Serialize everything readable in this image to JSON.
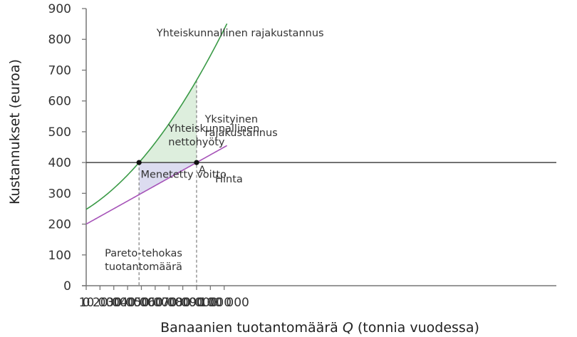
{
  "chart_data": {
    "type": "line",
    "title": "",
    "xlabel": "Banaanien tuotantomäärä Q (tonnia vuodessa)",
    "xlabel_parts": {
      "before": "Banaanien tuotantomäärä ",
      "italic": "Q",
      "after": " (tonnia vuodessa)"
    },
    "ylabel": "Kustannukset (euroa)",
    "xlim": [
      0,
      102000
    ],
    "ylim": [
      0,
      900
    ],
    "x_ticks": [
      0,
      10000,
      20000,
      30000,
      40000,
      50000,
      60000,
      70000,
      80000,
      90000,
      100000
    ],
    "x_tick_labels": [
      "0",
      "10 000",
      "20 000",
      "30 000",
      "40 000",
      "50 000",
      "60 000",
      "70 000",
      "80 000",
      "90 000",
      "100 000"
    ],
    "y_ticks": [
      0,
      100,
      200,
      300,
      400,
      500,
      600,
      700,
      800,
      900
    ],
    "y_tick_labels": [
      "0",
      "100",
      "200",
      "300",
      "400",
      "500",
      "600",
      "700",
      "800",
      "900"
    ],
    "grid": false,
    "series": [
      {
        "name": "Yhteiskunnallinen rajakustannus",
        "color": "#3a9a46",
        "formula": "248 + 2.8*q + 0.0305*q^2 (q in thousands)",
        "coef": [
          248,
          2.8,
          0.0305
        ],
        "x": [
          0,
          10000,
          20000,
          30000,
          38300,
          40000,
          50000,
          60000,
          70000,
          80000,
          90000,
          100000,
          102000
        ],
        "values": [
          248,
          279,
          316,
          359,
          400,
          409,
          464,
          526,
          593,
          665,
          747,
          833,
          850
        ]
      },
      {
        "name": "Yksityinen rajakustannus",
        "color": "#a653b8",
        "formula": "200 + 2.5*q (q in thousands)",
        "coef": [
          200,
          2.5,
          0
        ],
        "x": [
          0,
          10000,
          20000,
          30000,
          38300,
          40000,
          50000,
          60000,
          70000,
          80000,
          90000,
          100000,
          102000
        ],
        "values": [
          200,
          225,
          250,
          275,
          296,
          300,
          325,
          350,
          375,
          400,
          425,
          450,
          455
        ]
      },
      {
        "name": "Hinta",
        "color": "#444444",
        "x": [
          0,
          102000
        ],
        "values": [
          400,
          400
        ]
      }
    ],
    "shaded_areas": [
      {
        "name": "Yhteiskunnallinen nettohyöty",
        "color": "#ddeedd",
        "between": [
          "Yhteiskunnallinen rajakustannus",
          "Hinta"
        ],
        "x_range": [
          38300,
          80000
        ]
      },
      {
        "name": "Menetetty voitto",
        "color": "#dcdcf0",
        "between": [
          "Hinta",
          "Yksityinen rajakustannus"
        ],
        "x_range": [
          38300,
          80000
        ]
      }
    ],
    "points": [
      {
        "label": "",
        "x": 38300,
        "y": 400
      },
      {
        "label": "A",
        "x": 80000,
        "y": 400
      }
    ],
    "vertical_dashed_lines": [
      38300,
      80000
    ],
    "annotations": [
      {
        "text": [
          "Yhteiskunnallinen rajakustannus"
        ],
        "x": 51000,
        "y": 810
      },
      {
        "text": [
          "Yksityinen",
          "rajakustannus"
        ],
        "x": 86000,
        "y": 530
      },
      {
        "text": [
          "Hinta"
        ],
        "x": 93500,
        "y": 335
      },
      {
        "text": [
          "Yhteiskunnallinen",
          "nettohyöty"
        ],
        "x": 59500,
        "y": 500
      },
      {
        "text": [
          "Menetetty voitto"
        ],
        "x": 39500,
        "y": 350
      },
      {
        "text": [
          "Pareto-tehokas",
          "tuotantomäärä"
        ],
        "x": 13500,
        "y": 95
      },
      {
        "text": [
          "A"
        ],
        "x": 81500,
        "y": 365
      }
    ]
  }
}
